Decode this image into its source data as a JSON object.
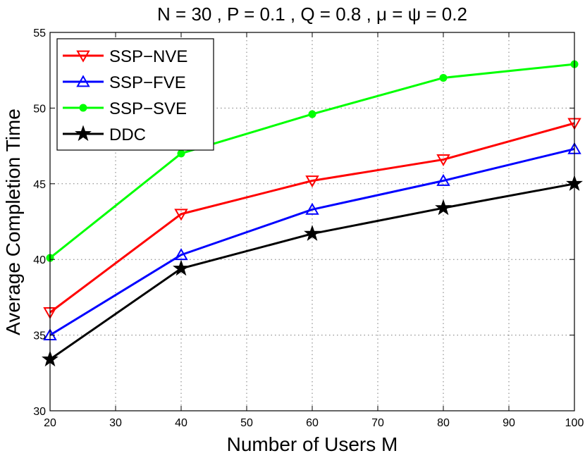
{
  "chart_data": {
    "type": "line",
    "title": "N = 30 , P = 0.1 , Q = 0.8 , μ = ψ = 0.2",
    "xlabel": "Number of Users M",
    "ylabel": "Average Completion Time",
    "xlim": [
      20,
      100
    ],
    "ylim": [
      30,
      55
    ],
    "xticks": [
      20,
      30,
      40,
      50,
      60,
      70,
      80,
      90,
      100
    ],
    "yticks": [
      30,
      35,
      40,
      45,
      50,
      55
    ],
    "grid": true,
    "legend_position": "top-left",
    "x": [
      20,
      40,
      60,
      80,
      100
    ],
    "series": [
      {
        "name": "SSP−NVE",
        "color": "#ff0000",
        "marker": "triangle-down",
        "values": [
          36.5,
          43.0,
          45.2,
          46.6,
          49.0
        ]
      },
      {
        "name": "SSP−FVE",
        "color": "#0000ff",
        "marker": "triangle-up",
        "values": [
          35.0,
          40.3,
          43.3,
          45.2,
          47.3
        ]
      },
      {
        "name": "SSP−SVE",
        "color": "#00ff00",
        "marker": "dot",
        "values": [
          40.1,
          47.0,
          49.6,
          52.0,
          52.9
        ]
      },
      {
        "name": "DDC",
        "color": "#000000",
        "marker": "star",
        "values": [
          33.4,
          39.4,
          41.7,
          43.4,
          45.0
        ]
      }
    ]
  }
}
